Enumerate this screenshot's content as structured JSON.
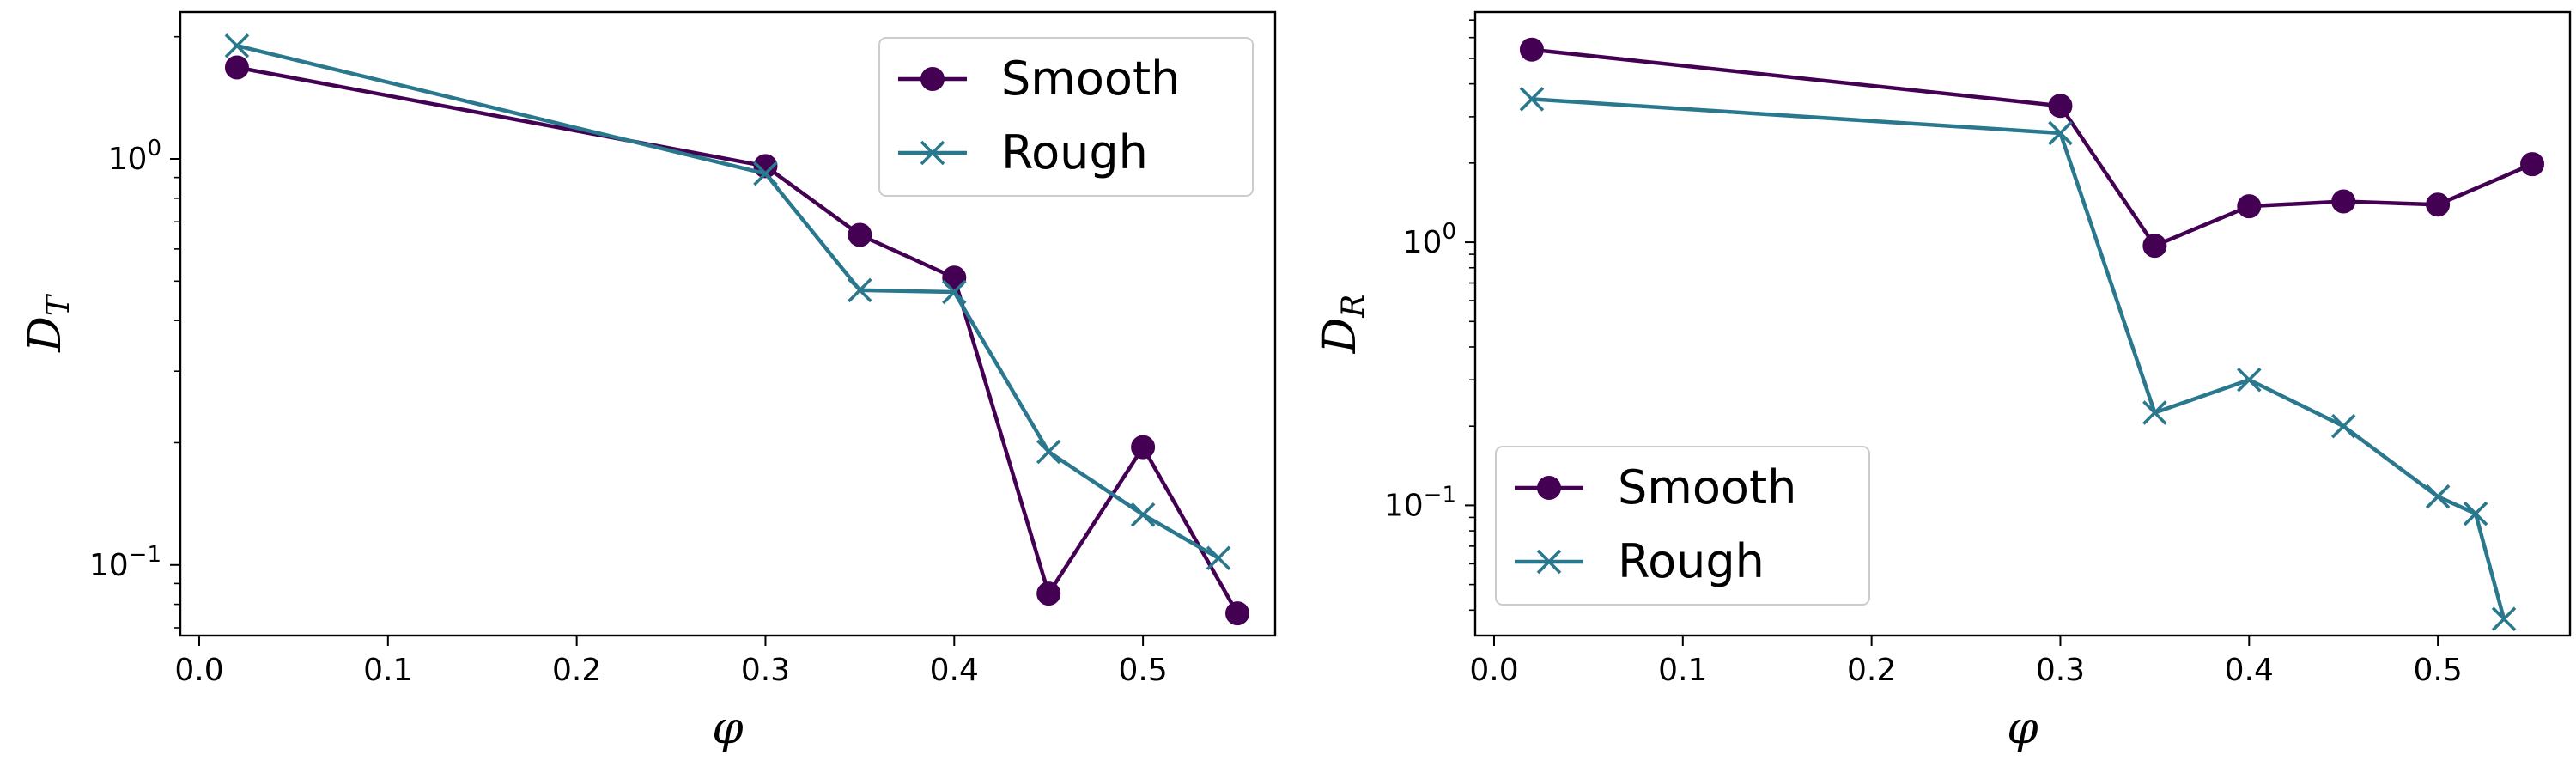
{
  "chart_data": [
    {
      "type": "line",
      "title": "",
      "xlabel": "φ",
      "ylabel": "D_T",
      "ylabel_main": "D",
      "ylabel_sub": "T",
      "xlim": [
        -0.01,
        0.57
      ],
      "ylim": [
        0.067,
        2.3
      ],
      "yscale": "log",
      "xticks": [
        0.0,
        0.1,
        0.2,
        0.3,
        0.4,
        0.5
      ],
      "xtick_labels": [
        "0.0",
        "0.1",
        "0.2",
        "0.3",
        "0.4",
        "0.5"
      ],
      "yticks": [
        0.1,
        1.0
      ],
      "ytick_labels": [
        [
          "10",
          "−1"
        ],
        [
          "10",
          "0"
        ]
      ],
      "grid": false,
      "legend": {
        "placement": "top-right",
        "entries": [
          "Smooth",
          "Rough"
        ]
      },
      "series": [
        {
          "name": "Smooth",
          "color": "#440154",
          "marker": "circle",
          "x": [
            0.02,
            0.3,
            0.35,
            0.4,
            0.45,
            0.5,
            0.55
          ],
          "y": [
            1.68,
            0.96,
            0.65,
            0.51,
            0.085,
            0.195,
            0.076
          ]
        },
        {
          "name": "Rough",
          "color": "#2a788e",
          "marker": "x",
          "x": [
            0.02,
            0.3,
            0.35,
            0.4,
            0.45,
            0.5,
            0.54
          ],
          "y": [
            1.9,
            0.92,
            0.475,
            0.47,
            0.19,
            0.133,
            0.104
          ]
        }
      ]
    },
    {
      "type": "line",
      "title": "",
      "xlabel": "φ",
      "ylabel": "D_R",
      "ylabel_main": "D",
      "ylabel_sub": "R",
      "xlim": [
        -0.01,
        0.57
      ],
      "ylim": [
        0.032,
        7.5
      ],
      "yscale": "log",
      "xticks": [
        0.0,
        0.1,
        0.2,
        0.3,
        0.4,
        0.5
      ],
      "xtick_labels": [
        "0.0",
        "0.1",
        "0.2",
        "0.3",
        "0.4",
        "0.5"
      ],
      "yticks": [
        0.1,
        1.0
      ],
      "ytick_labels": [
        [
          "10",
          "−1"
        ],
        [
          "10",
          "0"
        ]
      ],
      "grid": false,
      "legend": {
        "placement": "bottom-left",
        "entries": [
          "Smooth",
          "Rough"
        ]
      },
      "series": [
        {
          "name": "Smooth",
          "color": "#440154",
          "marker": "circle",
          "x": [
            0.02,
            0.3,
            0.35,
            0.4,
            0.45,
            0.5,
            0.55
          ],
          "y": [
            5.4,
            3.3,
            0.97,
            1.37,
            1.43,
            1.39,
            1.98
          ]
        },
        {
          "name": "Rough",
          "color": "#2a788e",
          "marker": "x",
          "x": [
            0.02,
            0.3,
            0.35,
            0.4,
            0.45,
            0.5,
            0.52,
            0.535
          ],
          "y": [
            3.5,
            2.6,
            0.225,
            0.3,
            0.2,
            0.108,
            0.093,
            0.037
          ]
        }
      ]
    }
  ]
}
